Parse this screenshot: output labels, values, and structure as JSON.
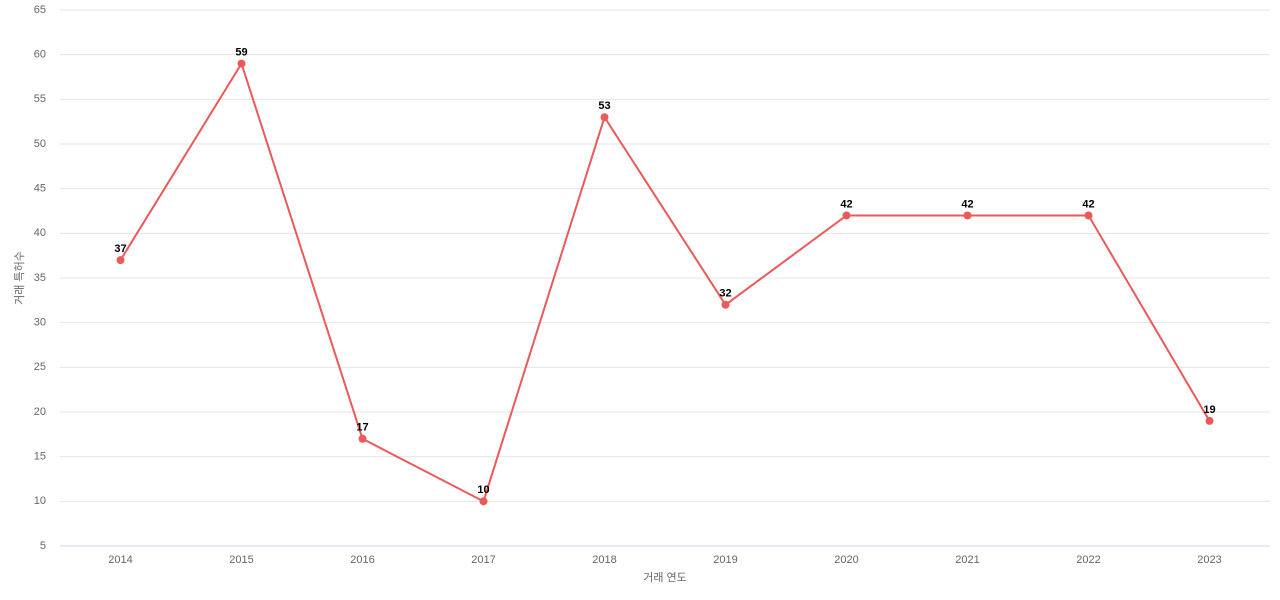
{
  "chart_data": {
    "type": "line",
    "x_label": "거래 연도",
    "y_label": "거래 특허수",
    "categories": [
      "2014",
      "2015",
      "2016",
      "2017",
      "2018",
      "2019",
      "2020",
      "2021",
      "2022",
      "2023"
    ],
    "series": [
      {
        "name": "거래 특허수",
        "color": "#eb5a5a",
        "values": [
          37,
          59,
          17,
          10,
          53,
          32,
          42,
          42,
          42,
          19
        ]
      }
    ],
    "ylim": [
      5,
      65
    ],
    "yticks": [
      5,
      10,
      15,
      20,
      25,
      30,
      35,
      40,
      45,
      50,
      55,
      60,
      65
    ],
    "grid": true
  }
}
